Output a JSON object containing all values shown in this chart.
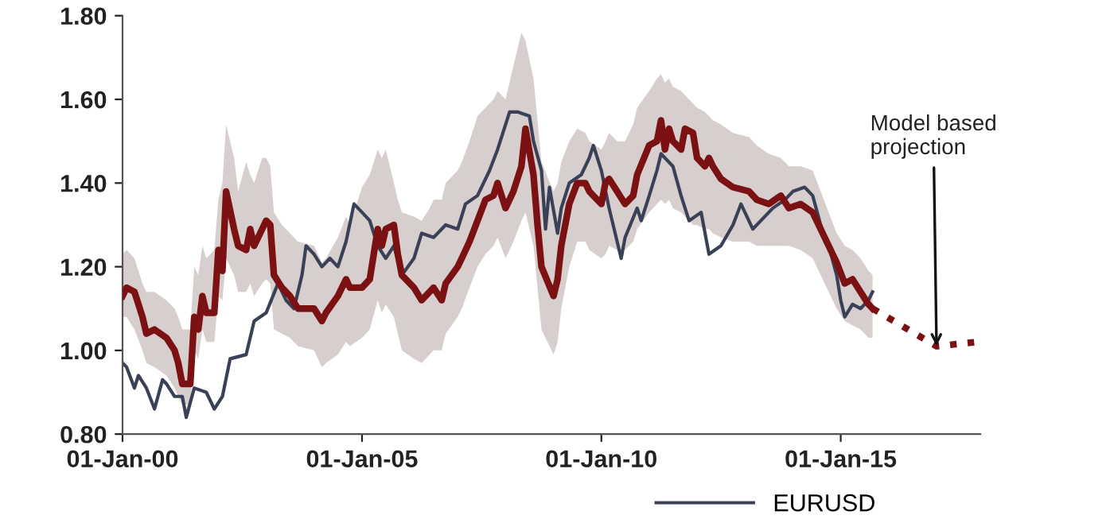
{
  "chart_data": {
    "type": "line",
    "xlim": [
      "2000-01-01",
      "2017-12-01"
    ],
    "xticks": [
      {
        "value": "2000-01-01",
        "label": "01-Jan-00"
      },
      {
        "value": "2005-01-01",
        "label": "01-Jan-05"
      },
      {
        "value": "2010-01-01",
        "label": "01-Jan-10"
      },
      {
        "value": "2015-01-01",
        "label": "01-Jan-15"
      }
    ],
    "ylim": [
      0.8,
      1.8
    ],
    "yticks": [
      {
        "value": 0.8,
        "label": "0.80"
      },
      {
        "value": 1.0,
        "label": "1.00"
      },
      {
        "value": 1.2,
        "label": "1.20"
      },
      {
        "value": 1.4,
        "label": "1.40"
      },
      {
        "value": 1.6,
        "label": "1.60"
      },
      {
        "value": 1.8,
        "label": "1.80"
      }
    ],
    "grid": false,
    "legend": "bottom",
    "marker": "none",
    "annotations": [
      {
        "text": "Model based\nprojection",
        "x": "2017-01",
        "y": 1.01
      }
    ],
    "series": [
      {
        "color": "#7b1113",
        "line_style": "solid",
        "x": [
          "2000-01",
          "2000-02",
          "2000-04",
          "2000-06",
          "2000-07",
          "2000-09",
          "2000-12",
          "2001-02",
          "2001-03",
          "2001-04",
          "2001-06",
          "2001-07",
          "2001-08",
          "2001-09",
          "2001-10",
          "2001-12",
          "2002-01",
          "2002-02",
          "2002-03",
          "2002-05",
          "2002-06",
          "2002-08",
          "2002-09",
          "2002-10",
          "2002-12",
          "2003-01",
          "2003-02",
          "2003-03",
          "2003-05",
          "2003-07",
          "2003-09",
          "2004-01",
          "2004-03",
          "2004-04",
          "2004-07",
          "2004-09",
          "2004-10",
          "2005-01",
          "2005-03",
          "2005-05",
          "2005-06",
          "2005-07",
          "2005-09",
          "2005-10",
          "2005-11",
          "2006-02",
          "2006-04",
          "2006-06",
          "2006-07",
          "2006-09",
          "2006-10",
          "2007-01",
          "2007-02",
          "2007-04",
          "2007-06",
          "2007-08",
          "2007-10",
          "2007-11",
          "2008-01",
          "2008-03",
          "2008-05",
          "2008-06",
          "2008-08",
          "2008-09",
          "2008-10",
          "2009-01",
          "2009-02",
          "2009-03",
          "2009-05",
          "2009-07",
          "2009-09",
          "2009-10",
          "2010-01",
          "2010-02",
          "2010-03",
          "2010-05",
          "2010-07",
          "2010-09",
          "2010-10",
          "2011-01",
          "2011-03",
          "2011-04",
          "2011-05",
          "2011-06",
          "2011-07",
          "2011-09",
          "2011-10",
          "2011-12",
          "2012-01",
          "2012-03",
          "2012-04",
          "2012-05",
          "2012-07",
          "2012-10",
          "2013-02",
          "2013-04",
          "2013-07",
          "2013-10",
          "2013-12",
          "2014-03",
          "2014-06",
          "2014-08",
          "2014-10",
          "2014-12",
          "2015-02",
          "2015-04",
          "2015-06",
          "2015-08",
          "2015-09"
        ],
        "values": [
          1.13,
          1.15,
          1.14,
          1.08,
          1.04,
          1.05,
          1.03,
          1.0,
          0.97,
          0.92,
          0.92,
          1.08,
          1.05,
          1.13,
          1.09,
          1.09,
          1.24,
          1.19,
          1.38,
          1.29,
          1.25,
          1.24,
          1.29,
          1.25,
          1.29,
          1.31,
          1.3,
          1.18,
          1.15,
          1.13,
          1.1,
          1.1,
          1.07,
          1.09,
          1.13,
          1.17,
          1.15,
          1.15,
          1.17,
          1.29,
          1.25,
          1.29,
          1.3,
          1.23,
          1.18,
          1.15,
          1.12,
          1.14,
          1.15,
          1.12,
          1.16,
          1.2,
          1.22,
          1.26,
          1.31,
          1.36,
          1.37,
          1.4,
          1.34,
          1.38,
          1.44,
          1.53,
          1.42,
          1.3,
          1.2,
          1.13,
          1.17,
          1.25,
          1.35,
          1.4,
          1.4,
          1.38,
          1.35,
          1.4,
          1.41,
          1.38,
          1.35,
          1.37,
          1.42,
          1.49,
          1.5,
          1.55,
          1.48,
          1.53,
          1.5,
          1.48,
          1.53,
          1.52,
          1.46,
          1.44,
          1.46,
          1.44,
          1.41,
          1.39,
          1.38,
          1.36,
          1.35,
          1.37,
          1.34,
          1.35,
          1.33,
          1.29,
          1.25,
          1.21,
          1.16,
          1.17,
          1.14,
          1.11,
          1.1
        ],
        "upper": [
          1.23,
          1.24,
          1.22,
          1.16,
          1.14,
          1.14,
          1.12,
          1.1,
          1.08,
          1.05,
          1.05,
          1.2,
          1.18,
          1.25,
          1.22,
          1.24,
          1.36,
          1.4,
          1.54,
          1.46,
          1.38,
          1.45,
          1.42,
          1.4,
          1.46,
          1.46,
          1.44,
          1.33,
          1.3,
          1.28,
          1.26,
          1.25,
          1.21,
          1.22,
          1.27,
          1.32,
          1.3,
          1.39,
          1.42,
          1.48,
          1.46,
          1.48,
          1.4,
          1.36,
          1.33,
          1.32,
          1.31,
          1.34,
          1.36,
          1.36,
          1.4,
          1.43,
          1.45,
          1.5,
          1.56,
          1.58,
          1.6,
          1.62,
          1.6,
          1.68,
          1.76,
          1.74,
          1.65,
          1.55,
          1.45,
          1.38,
          1.4,
          1.45,
          1.5,
          1.53,
          1.52,
          1.5,
          1.48,
          1.5,
          1.52,
          1.5,
          1.5,
          1.54,
          1.58,
          1.62,
          1.65,
          1.66,
          1.64,
          1.65,
          1.63,
          1.62,
          1.61,
          1.59,
          1.58,
          1.57,
          1.56,
          1.55,
          1.54,
          1.52,
          1.51,
          1.49,
          1.47,
          1.46,
          1.44,
          1.44,
          1.43,
          1.38,
          1.33,
          1.28,
          1.25,
          1.24,
          1.22,
          1.19,
          1.18
        ],
        "lower": [
          1.08,
          1.08,
          1.05,
          1.0,
          0.97,
          0.96,
          0.94,
          0.91,
          0.89,
          0.87,
          0.87,
          1.0,
          0.98,
          1.05,
          1.02,
          1.02,
          1.13,
          1.12,
          1.22,
          1.18,
          1.14,
          1.14,
          1.16,
          1.13,
          1.16,
          1.17,
          1.16,
          1.05,
          1.04,
          1.03,
          1.01,
          1.0,
          0.96,
          0.97,
          0.99,
          1.02,
          1.01,
          1.03,
          1.05,
          1.12,
          1.09,
          1.11,
          1.08,
          1.04,
          1.0,
          0.98,
          0.97,
          0.99,
          1.0,
          1.0,
          1.04,
          1.08,
          1.1,
          1.15,
          1.2,
          1.23,
          1.25,
          1.27,
          1.22,
          1.26,
          1.31,
          1.33,
          1.25,
          1.15,
          1.05,
          0.99,
          1.02,
          1.1,
          1.2,
          1.26,
          1.26,
          1.24,
          1.22,
          1.23,
          1.25,
          1.24,
          1.24,
          1.26,
          1.29,
          1.33,
          1.35,
          1.36,
          1.35,
          1.36,
          1.34,
          1.33,
          1.32,
          1.3,
          1.3,
          1.29,
          1.29,
          1.28,
          1.27,
          1.26,
          1.26,
          1.25,
          1.25,
          1.25,
          1.25,
          1.24,
          1.22,
          1.18,
          1.14,
          1.1,
          1.07,
          1.06,
          1.05,
          1.03,
          1.03
        ]
      },
      {
        "color": "#7b1113",
        "line_style": "dotted",
        "x": [
          "2015-09",
          "2017-01",
          "2017-11"
        ],
        "values": [
          1.1,
          1.01,
          1.02
        ]
      },
      {
        "name": "EURUSD",
        "color": "#3a4055",
        "line_style": "solid",
        "x": [
          "2000-01",
          "2000-02",
          "2000-04",
          "2000-05",
          "2000-07",
          "2000-09",
          "2000-11",
          "2000-12",
          "2001-02",
          "2001-04",
          "2001-05",
          "2001-07",
          "2001-10",
          "2001-12",
          "2002-02",
          "2002-04",
          "2002-08",
          "2002-10",
          "2003-01",
          "2003-04",
          "2003-06",
          "2003-08",
          "2003-10",
          "2003-11",
          "2004-01",
          "2004-03",
          "2004-05",
          "2004-07",
          "2004-09",
          "2004-11",
          "2005-01",
          "2005-03",
          "2005-05",
          "2005-07",
          "2005-09",
          "2005-11",
          "2006-02",
          "2006-04",
          "2006-07",
          "2006-10",
          "2007-01",
          "2007-03",
          "2007-06",
          "2007-09",
          "2007-11",
          "2008-02",
          "2008-04",
          "2008-07",
          "2008-08",
          "2008-10",
          "2008-11",
          "2008-12",
          "2009-02",
          "2009-03",
          "2009-05",
          "2009-08",
          "2009-10",
          "2009-11",
          "2010-01",
          "2010-03",
          "2010-06",
          "2010-07",
          "2010-10",
          "2010-11",
          "2011-01",
          "2011-03",
          "2011-04",
          "2011-07",
          "2011-09",
          "2011-11",
          "2012-02",
          "2012-04",
          "2012-07",
          "2012-10",
          "2012-12",
          "2013-03",
          "2013-06",
          "2013-08",
          "2013-11",
          "2014-01",
          "2014-04",
          "2014-06",
          "2014-08",
          "2014-10",
          "2014-12",
          "2015-01",
          "2015-02",
          "2015-04",
          "2015-06",
          "2015-08",
          "2015-09"
        ],
        "values": [
          0.97,
          0.96,
          0.91,
          0.94,
          0.91,
          0.86,
          0.93,
          0.92,
          0.89,
          0.89,
          0.84,
          0.91,
          0.9,
          0.86,
          0.89,
          0.98,
          0.99,
          1.07,
          1.09,
          1.16,
          1.12,
          1.1,
          1.18,
          1.25,
          1.23,
          1.2,
          1.22,
          1.2,
          1.26,
          1.35,
          1.33,
          1.31,
          1.25,
          1.22,
          1.25,
          1.18,
          1.22,
          1.28,
          1.27,
          1.3,
          1.29,
          1.35,
          1.37,
          1.43,
          1.48,
          1.57,
          1.57,
          1.56,
          1.5,
          1.43,
          1.29,
          1.39,
          1.28,
          1.34,
          1.4,
          1.42,
          1.46,
          1.49,
          1.43,
          1.34,
          1.22,
          1.27,
          1.34,
          1.31,
          1.37,
          1.43,
          1.47,
          1.44,
          1.37,
          1.31,
          1.33,
          1.23,
          1.25,
          1.3,
          1.35,
          1.29,
          1.32,
          1.34,
          1.36,
          1.38,
          1.39,
          1.37,
          1.3,
          1.25,
          1.18,
          1.12,
          1.08,
          1.11,
          1.1,
          1.12,
          1.14
        ]
      }
    ]
  }
}
